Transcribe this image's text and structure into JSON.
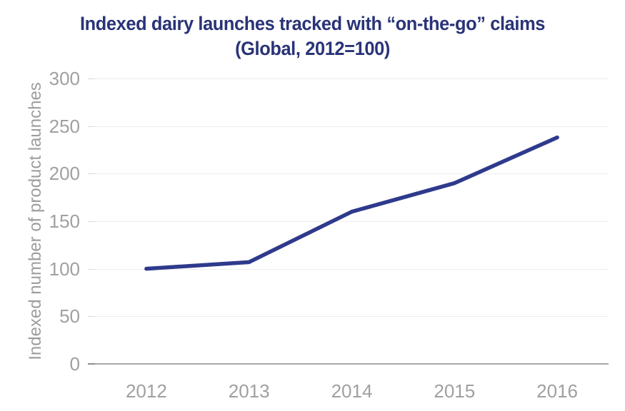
{
  "title": {
    "line1": "Indexed dairy launches tracked with “on-the-go” claims",
    "line2": "(Global, 2012=100)"
  },
  "chart_data": {
    "type": "line",
    "categories": [
      "2012",
      "2013",
      "2014",
      "2015",
      "2016"
    ],
    "values": [
      100,
      107,
      160,
      190,
      238
    ],
    "title": "Indexed dairy launches tracked with “on-the-go” claims (Global, 2012=100)",
    "xlabel": "",
    "ylabel": "Indexed number of product launches",
    "ylim": [
      0,
      300
    ],
    "y_ticks": [
      0,
      50,
      100,
      150,
      200,
      250,
      300
    ],
    "grid": true,
    "legend": false
  },
  "colors": {
    "title": "#293377",
    "line": "#2e3a8c",
    "tick_text": "#a0a0a0",
    "gridline": "#ededed",
    "axis_line": "#a8a8a8",
    "background": "#ffffff"
  }
}
